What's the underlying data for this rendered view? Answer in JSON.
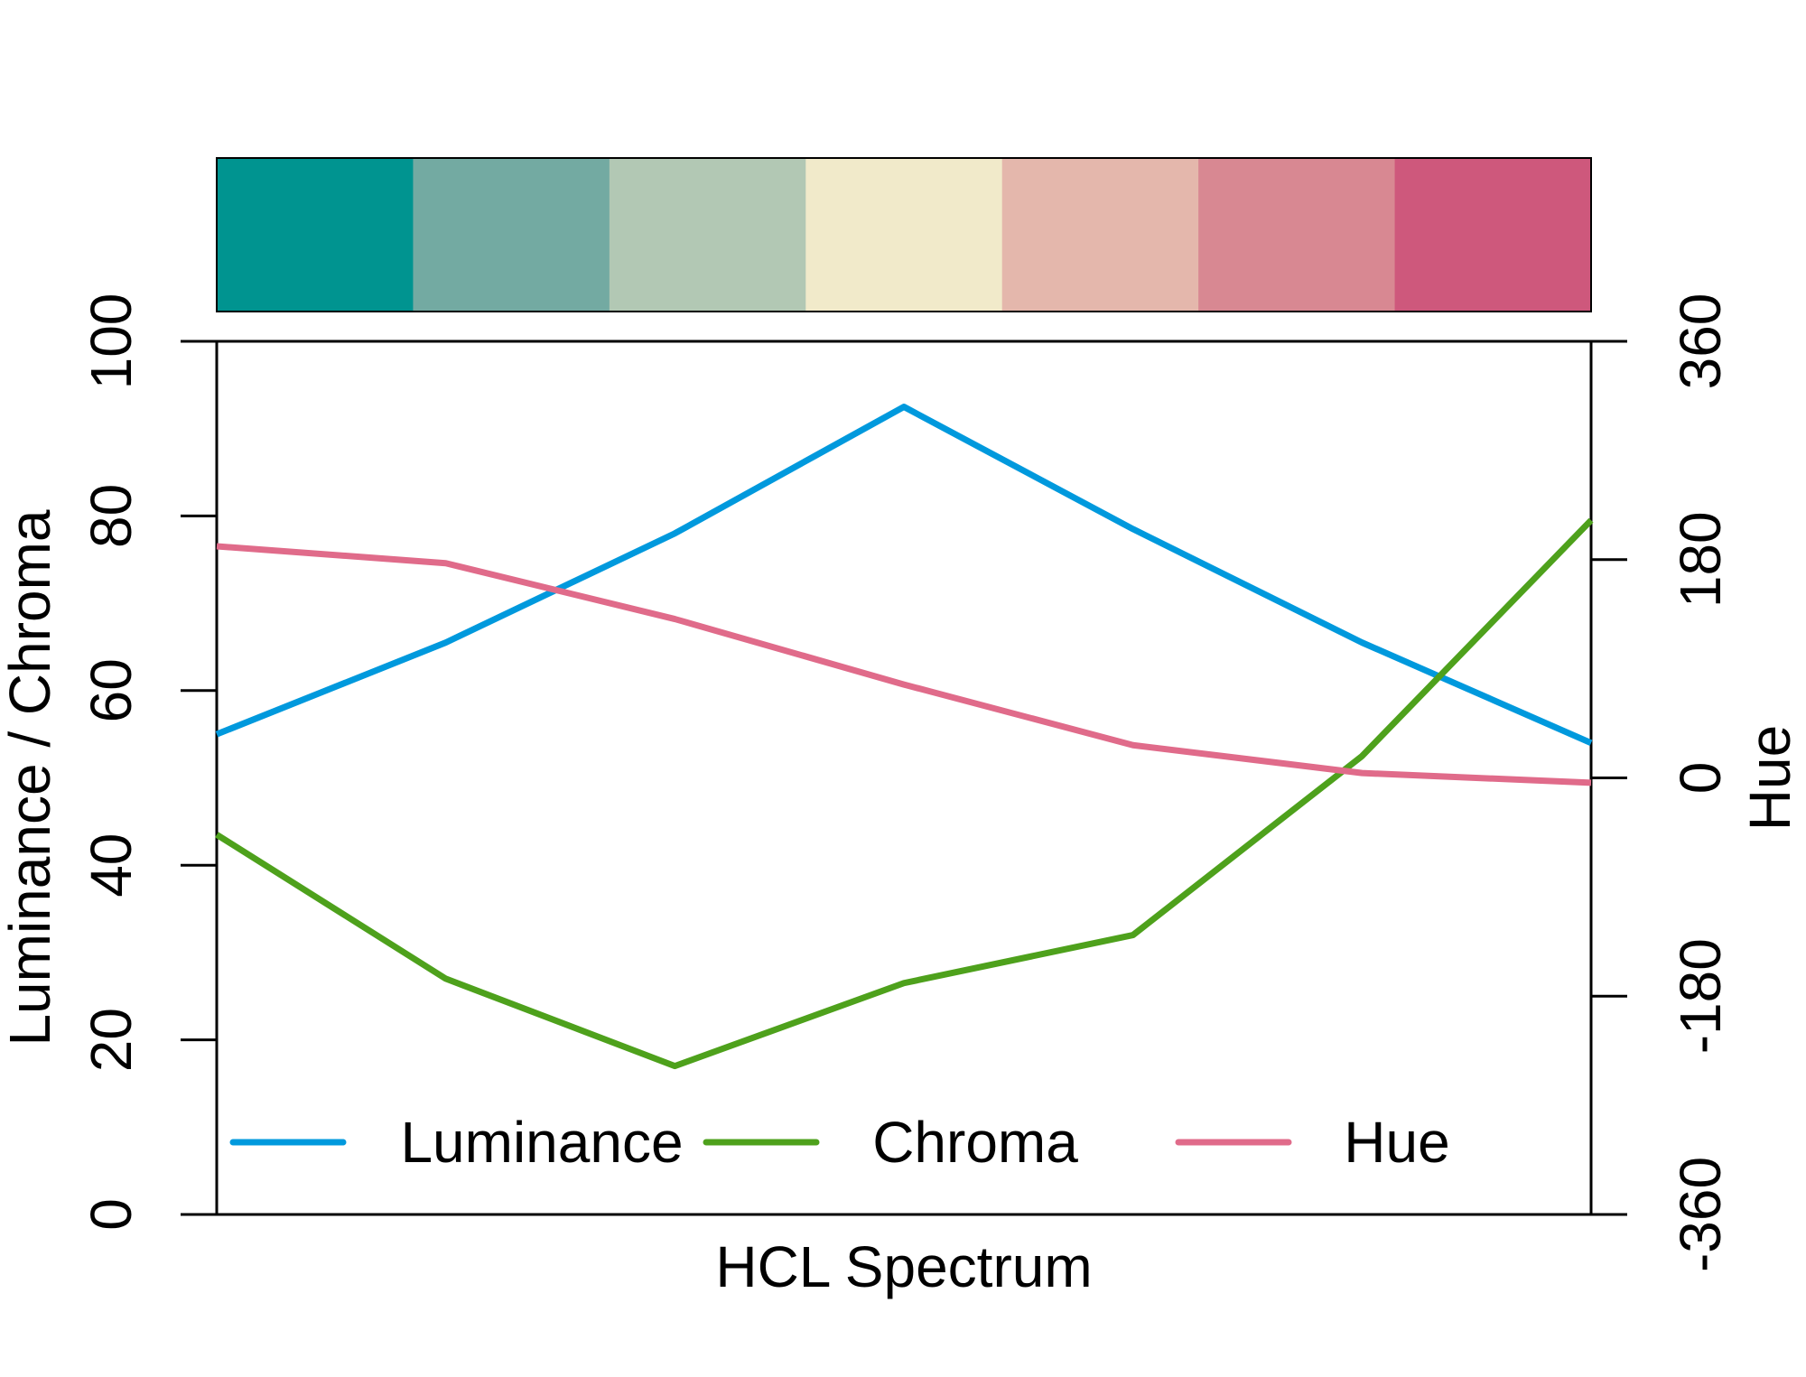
{
  "chart_data": {
    "type": "line",
    "xlabel": "HCL Spectrum",
    "ylabel_left": "Luminance / Chroma",
    "ylabel_right": "Hue",
    "ylim_left": [
      0,
      100
    ],
    "ylim_right": [
      -360,
      360
    ],
    "yticks_left": [
      "0",
      "20",
      "40",
      "60",
      "80",
      "100"
    ],
    "yticks_right": [
      "-360",
      "-180",
      "0",
      "180",
      "360"
    ],
    "x": [
      1,
      2,
      3,
      4,
      5,
      6,
      7
    ],
    "palette": [
      "#009490",
      "#73aaa2",
      "#b2c8b4",
      "#f1eaca",
      "#e4b7ac",
      "#d88892",
      "#ce587c"
    ],
    "series": [
      {
        "name": "Luminance",
        "axis": "left",
        "color": "#0099dd",
        "values": [
          55,
          65.5,
          78,
          92.5,
          78.5,
          65.5,
          54
        ]
      },
      {
        "name": "Chroma",
        "axis": "left",
        "color": "#4ea11c",
        "values": [
          43.5,
          27,
          17,
          26.5,
          32,
          52.5,
          79.5
        ]
      },
      {
        "name": "Hue",
        "axis": "right",
        "color": "#e06b8a",
        "values": [
          191,
          177,
          131,
          77,
          27,
          4,
          -4
        ]
      }
    ],
    "legend_position": "bottom",
    "grid": false
  }
}
